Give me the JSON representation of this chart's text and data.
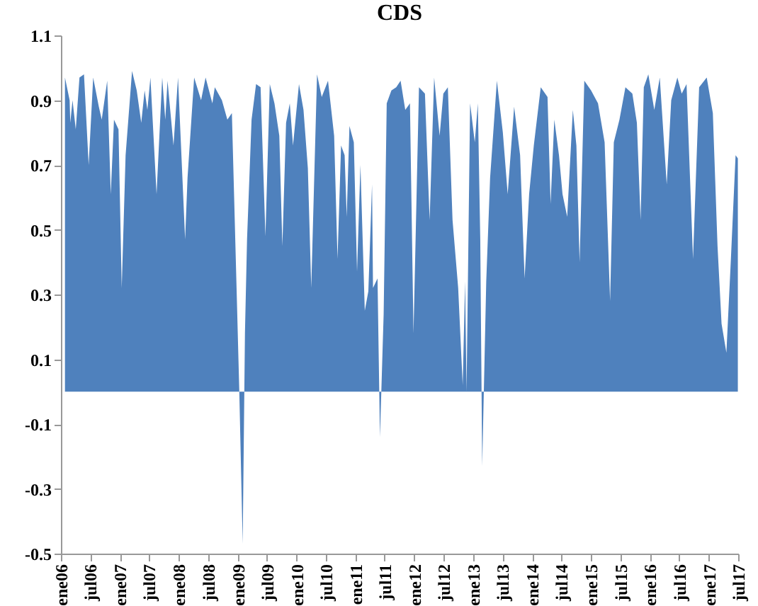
{
  "chart_data": {
    "type": "area",
    "title": "CDS",
    "x": [
      "2006-01-26",
      "2006-02-24",
      "2006-02-28",
      "2006-03-14",
      "2006-04-03",
      "2006-04-26",
      "2006-05-24",
      "2006-06-22",
      "2006-07-20",
      "2006-08-24",
      "2006-09-11",
      "2006-10-15",
      "2006-11-06",
      "2006-11-26",
      "2006-12-24",
      "2007-01-13",
      "2007-02-06",
      "2007-03-18",
      "2007-04-16",
      "2007-05-14",
      "2007-06-04",
      "2007-06-21",
      "2007-07-10",
      "2007-08-17",
      "2007-09-21",
      "2007-10-10",
      "2007-10-24",
      "2007-11-30",
      "2007-12-28",
      "2008-02-10",
      "2008-02-25",
      "2008-04-06",
      "2008-05-19",
      "2008-06-16",
      "2008-07-28",
      "2008-08-12",
      "2008-09-25",
      "2008-10-29",
      "2008-11-26",
      "2008-12-25",
      "2009-01-11",
      "2009-02-01",
      "2009-02-15",
      "2009-02-28",
      "2009-03-28",
      "2009-04-25",
      "2009-05-23",
      "2009-06-22",
      "2009-07-19",
      "2009-08-17",
      "2009-09-16",
      "2009-10-05",
      "2009-10-28",
      "2009-11-20",
      "2009-12-10",
      "2010-01-16",
      "2010-02-13",
      "2010-03-12",
      "2010-04-02",
      "2010-05-08",
      "2010-06-06",
      "2010-07-15",
      "2010-08-22",
      "2010-09-12",
      "2010-10-04",
      "2010-10-26",
      "2010-11-08",
      "2010-11-25",
      "2010-12-22",
      "2011-01-11",
      "2011-02-01",
      "2011-02-28",
      "2011-03-22",
      "2011-04-14",
      "2011-04-20",
      "2011-05-18",
      "2011-06-02",
      "2011-06-25",
      "2011-07-14",
      "2011-08-12",
      "2011-09-11",
      "2011-10-08",
      "2011-11-06",
      "2011-12-05",
      "2011-12-27",
      "2012-01-30",
      "2012-03-07",
      "2012-04-05",
      "2012-05-03",
      "2012-06-06",
      "2012-06-29",
      "2012-07-27",
      "2012-08-25",
      "2012-09-29",
      "2012-10-27",
      "2012-11-11",
      "2012-11-20",
      "2012-12-12",
      "2013-01-10",
      "2013-01-29",
      "2013-02-13",
      "2013-02-25",
      "2013-03-22",
      "2013-04-15",
      "2013-05-27",
      "2013-07-03",
      "2013-08-02",
      "2013-09-11",
      "2013-10-18",
      "2013-11-15",
      "2013-12-13",
      "2014-01-11",
      "2014-02-23",
      "2014-04-06",
      "2014-04-25",
      "2014-05-18",
      "2014-06-16",
      "2014-07-08",
      "2014-08-06",
      "2014-09-10",
      "2014-10-02",
      "2014-10-22",
      "2014-11-20",
      "2015-01-01",
      "2015-02-13",
      "2015-03-26",
      "2015-04-29",
      "2015-05-22",
      "2015-06-26",
      "2015-08-02",
      "2015-09-14",
      "2015-10-12",
      "2015-11-04",
      "2015-11-24",
      "2015-12-22",
      "2016-01-28",
      "2016-03-02",
      "2016-04-14",
      "2016-05-12",
      "2016-06-19",
      "2016-07-16",
      "2016-08-15",
      "2016-09-24",
      "2016-11-01",
      "2016-12-18",
      "2017-01-25",
      "2017-02-23",
      "2017-03-20",
      "2017-04-19",
      "2017-05-17",
      "2017-06-15",
      "2017-06-29"
    ],
    "series": [
      {
        "color": "#4f81bd",
        "values": [
          0.97,
          0.9,
          0.83,
          0.9,
          0.81,
          0.97,
          0.98,
          0.7,
          0.97,
          0.88,
          0.84,
          0.96,
          0.61,
          0.84,
          0.81,
          0.32,
          0.73,
          0.99,
          0.93,
          0.83,
          0.93,
          0.87,
          0.97,
          0.61,
          0.97,
          0.84,
          0.96,
          0.76,
          0.97,
          0.47,
          0.66,
          0.97,
          0.9,
          0.97,
          0.89,
          0.94,
          0.9,
          0.84,
          0.86,
          0.32,
          0,
          -0.47,
          0.18,
          0.47,
          0.84,
          0.95,
          0.94,
          0.48,
          0.95,
          0.89,
          0.79,
          0.45,
          0.83,
          0.89,
          0.76,
          0.95,
          0.87,
          0.69,
          0.32,
          0.98,
          0.91,
          0.96,
          0.79,
          0.41,
          0.76,
          0.73,
          0.54,
          0.82,
          0.77,
          0.37,
          0.7,
          0.25,
          0.31,
          0.64,
          0.32,
          0.35,
          -0.14,
          0.24,
          0.89,
          0.93,
          0.94,
          0.96,
          0.87,
          0.89,
          0.18,
          0.94,
          0.92,
          0.53,
          0.97,
          0.79,
          0.92,
          0.94,
          0.53,
          0.32,
          0.02,
          0.34,
          0,
          0.89,
          0.77,
          0.89,
          0.47,
          -0.23,
          0.34,
          0.66,
          0.96,
          0.8,
          0.61,
          0.88,
          0.73,
          0.35,
          0.61,
          0.76,
          0.94,
          0.91,
          0.58,
          0.84,
          0.73,
          0.61,
          0.54,
          0.87,
          0.76,
          0.4,
          0.96,
          0.93,
          0.89,
          0.77,
          0.28,
          0.77,
          0.84,
          0.94,
          0.92,
          0.83,
          0.53,
          0.94,
          0.98,
          0.87,
          0.97,
          0.64,
          0.9,
          0.97,
          0.92,
          0.95,
          0.41,
          0.94,
          0.97,
          0.86,
          0.45,
          0.21,
          0.12,
          0.41,
          0.73,
          0.72
        ]
      }
    ],
    "xlim": [
      "2006-01-01",
      "2017-07-01"
    ],
    "xticks": [
      {
        "value": "2006-01-01",
        "label": "ene06"
      },
      {
        "value": "2006-07-01",
        "label": "jul06"
      },
      {
        "value": "2007-01-01",
        "label": "ene07"
      },
      {
        "value": "2007-07-01",
        "label": "jul07"
      },
      {
        "value": "2008-01-01",
        "label": "ene08"
      },
      {
        "value": "2008-07-01",
        "label": "jul08"
      },
      {
        "value": "2009-01-01",
        "label": "ene09"
      },
      {
        "value": "2009-07-01",
        "label": "jul09"
      },
      {
        "value": "2010-01-01",
        "label": "ene10"
      },
      {
        "value": "2010-07-01",
        "label": "jul10"
      },
      {
        "value": "2011-01-01",
        "label": "ene11"
      },
      {
        "value": "2011-07-01",
        "label": "jul11"
      },
      {
        "value": "2012-01-01",
        "label": "ene12"
      },
      {
        "value": "2012-07-01",
        "label": "jul12"
      },
      {
        "value": "2013-01-01",
        "label": "ene13"
      },
      {
        "value": "2013-07-01",
        "label": "jul13"
      },
      {
        "value": "2014-01-01",
        "label": "ene14"
      },
      {
        "value": "2014-07-01",
        "label": "jul14"
      },
      {
        "value": "2015-01-01",
        "label": "ene15"
      },
      {
        "value": "2015-07-01",
        "label": "jul15"
      },
      {
        "value": "2016-01-01",
        "label": "ene16"
      },
      {
        "value": "2016-07-01",
        "label": "jul16"
      },
      {
        "value": "2017-01-01",
        "label": "ene17"
      },
      {
        "value": "2017-07-01",
        "label": "jul17"
      }
    ],
    "ylim": [
      -0.5,
      1.1
    ],
    "yticks": [
      -0.5,
      -0.3,
      -0.1,
      0.1,
      0.3,
      0.5,
      0.7,
      0.9,
      1.1
    ]
  }
}
